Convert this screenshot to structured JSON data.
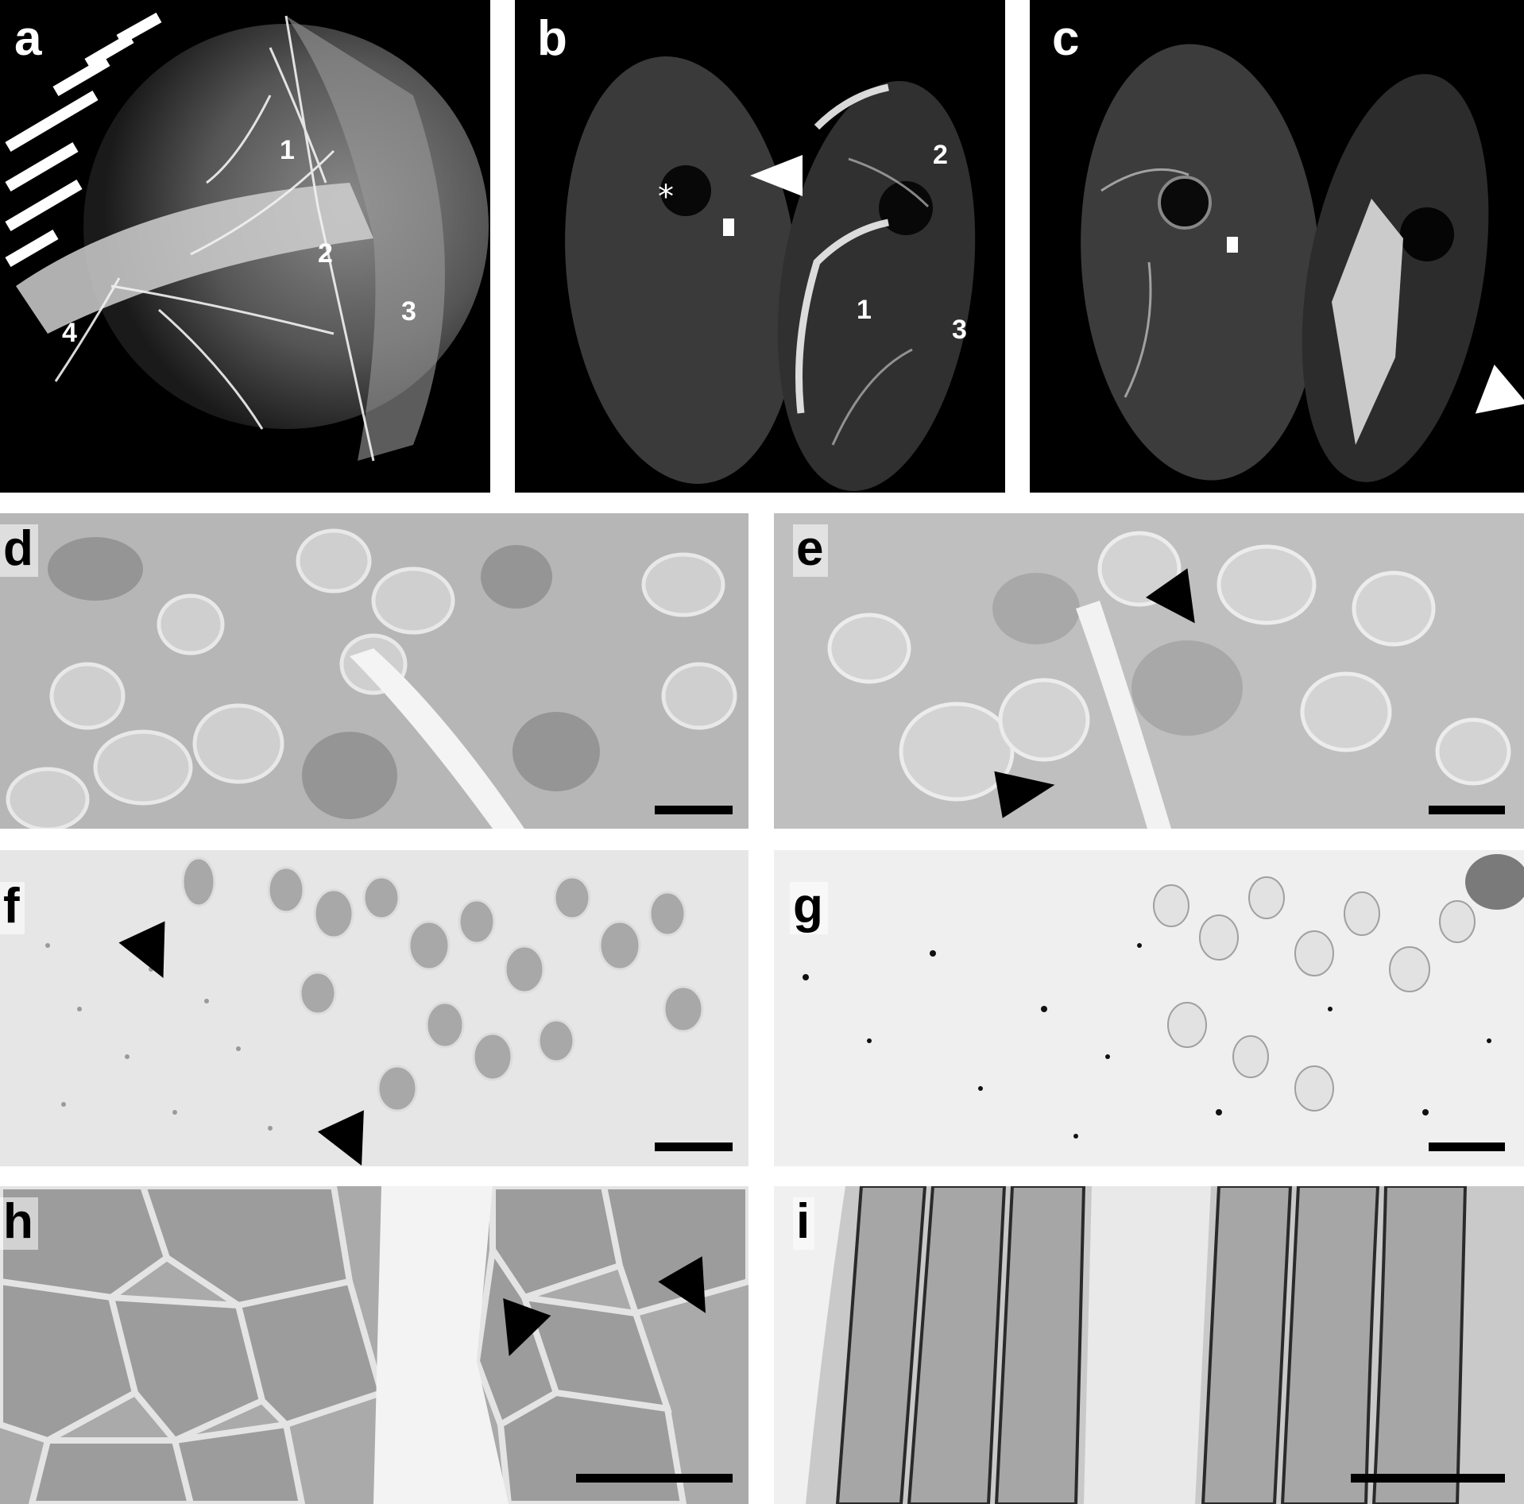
{
  "panels": {
    "a": {
      "label": "a",
      "numbers": [
        "1",
        "2",
        "3",
        "4"
      ]
    },
    "b": {
      "label": "b",
      "asterisk": "*",
      "numbers": [
        "1",
        "2",
        "3"
      ]
    },
    "c": {
      "label": "c"
    },
    "d": {
      "label": "d"
    },
    "e": {
      "label": "e"
    },
    "f": {
      "label": "f"
    },
    "g": {
      "label": "g"
    },
    "h": {
      "label": "h"
    },
    "i": {
      "label": "i"
    }
  },
  "colors": {
    "page_background": "#ffffff",
    "radiograph_background": "#000000",
    "histology_tone": "#b9b9b9",
    "arrowhead_on_dark": "#ffffff",
    "arrowhead_on_light": "#000000"
  }
}
